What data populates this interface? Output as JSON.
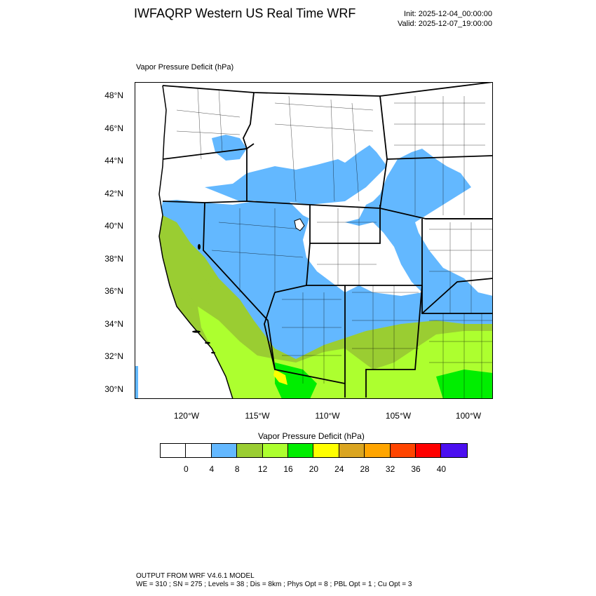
{
  "header": {
    "title": "IWFAQRP Western US Real Time WRF",
    "init": "Init: 2025-12-04_00:00:00",
    "valid": "Valid: 2025-12-07_19:00:00"
  },
  "plot": {
    "subtitle": "Vapor Pressure Deficit   (hPa)",
    "lat_labels": [
      "48°N",
      "46°N",
      "44°N",
      "42°N",
      "40°N",
      "38°N",
      "36°N",
      "34°N",
      "32°N",
      "30°N"
    ],
    "lon_labels": [
      "120°W",
      "115°W",
      "110°W",
      "105°W",
      "100°W"
    ]
  },
  "colorbar": {
    "title": "Vapor Pressure Deficit  (hPa)",
    "colors": [
      "#ffffff",
      "#ffffff",
      "#63b8ff",
      "#9acd32",
      "#adff2f",
      "#00ee00",
      "#ffff00",
      "#daa520",
      "#ffa500",
      "#ff4500",
      "#ff0000",
      "#4b0ff0"
    ],
    "labels": [
      "0",
      "4",
      "8",
      "12",
      "16",
      "20",
      "24",
      "28",
      "32",
      "36",
      "40"
    ]
  },
  "footer": {
    "line1": "OUTPUT FROM WRF V4.6.1 MODEL",
    "line2": "WE = 310 ; SN = 275 ; Levels = 38 ; Dis = 8km ; Phys Opt = 8 ; PBL Opt = 1 ; Cu Opt = 3"
  }
}
